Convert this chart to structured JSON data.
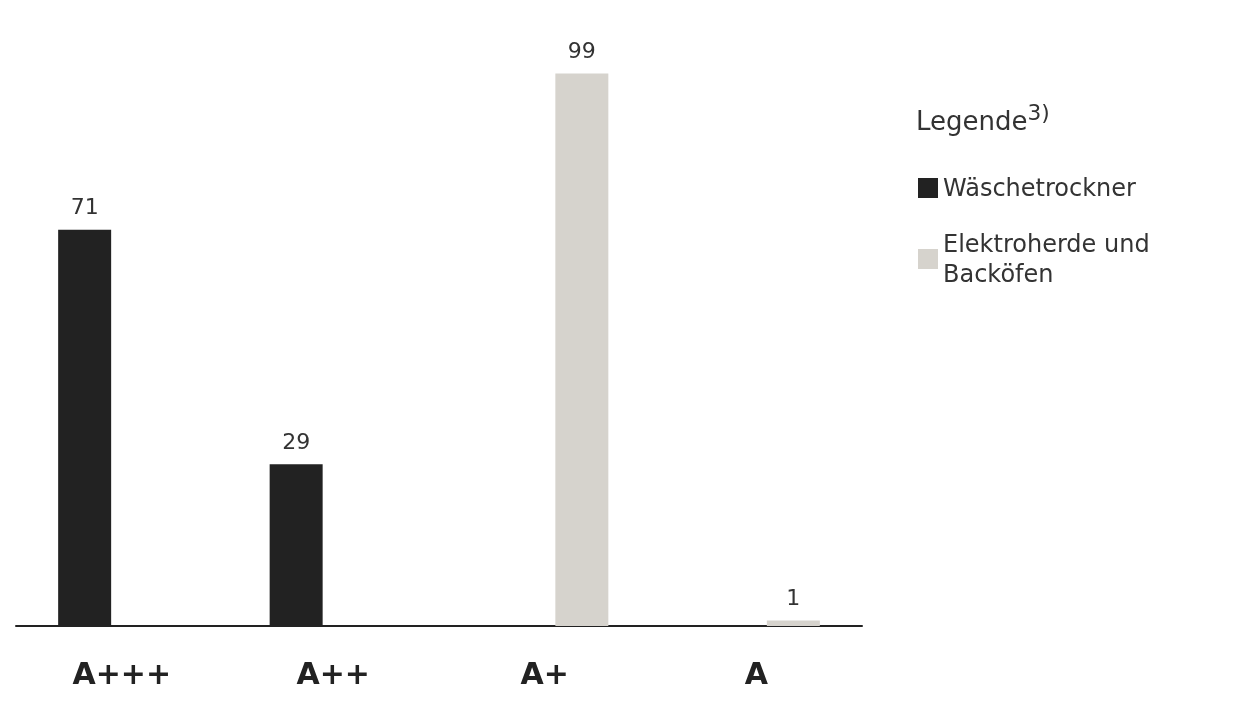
{
  "chart_data": {
    "type": "bar",
    "legend_title": "Legende$^{3)}$",
    "categories": [
      "A+++",
      "A++",
      "A+",
      "A"
    ],
    "series": [
      {
        "name": "Wäschetrockner",
        "color": "#222222",
        "values": [
          71,
          29,
          null,
          null
        ]
      },
      {
        "name": "Elektroherde und Backöfen",
        "color": "#d6d3cd",
        "values": [
          null,
          null,
          99,
          1
        ]
      }
    ],
    "data_labels": true,
    "legend": "right",
    "grid": false
  }
}
